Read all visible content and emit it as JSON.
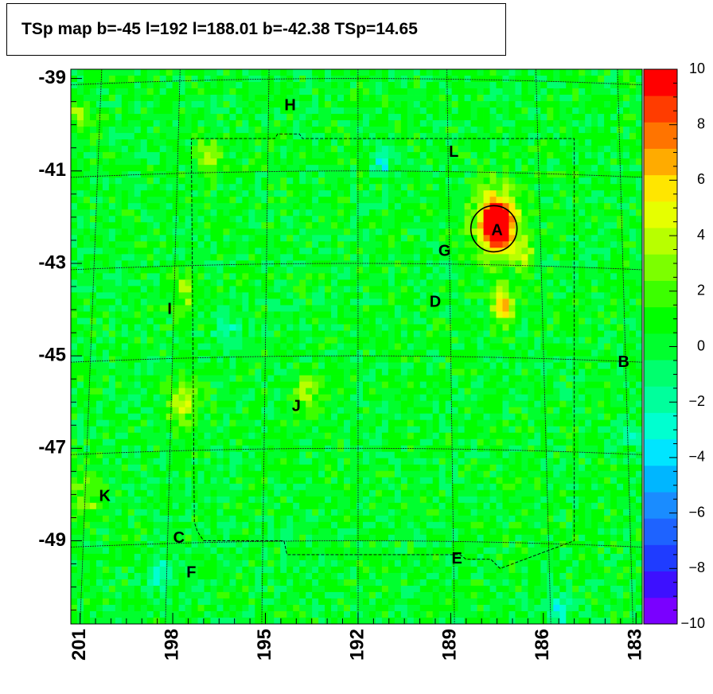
{
  "title": "TSp map b=-45 l=192 l=188.01 b=-42.38 TSp=14.65",
  "chart_data": {
    "type": "heatmap",
    "title": "TSp map b=-45 l=192 l=188.01 b=-42.38 TSp=14.65",
    "x_ticks": [
      "201",
      "198",
      "195",
      "192",
      "189",
      "186",
      "183"
    ],
    "x_tick_values": [
      201,
      198,
      195,
      192,
      189,
      186,
      183
    ],
    "xlim": [
      201.3,
      182.8
    ],
    "y_ticks": [
      "-39",
      "-41",
      "-43",
      "-45",
      "-47",
      "-49"
    ],
    "y_tick_values": [
      -39,
      -41,
      -43,
      -45,
      -47,
      -49
    ],
    "ylim": [
      -50.8,
      -38.8
    ],
    "colorbar": {
      "ticks": [
        "10",
        "8",
        "6",
        "4",
        "2",
        "0",
        "−2",
        "−4",
        "−6",
        "−8",
        "−10"
      ],
      "tick_values": [
        10,
        8,
        6,
        4,
        2,
        0,
        -2,
        -4,
        -6,
        -8,
        -10
      ],
      "range": [
        -10,
        10
      ],
      "colors": [
        "#7a00ff",
        "#3d10ff",
        "#1f3cff",
        "#1e63ff",
        "#1a8cff",
        "#00b6ff",
        "#00e5ff",
        "#00ffd0",
        "#00ff9c",
        "#00ff6e",
        "#00ff2e",
        "#00ff00",
        "#3cff00",
        "#7cff00",
        "#b8ff00",
        "#e6ff00",
        "#ffe600",
        "#ffab00",
        "#ff7400",
        "#ff3c00",
        "#ff0000"
      ]
    },
    "background_value": 0.3,
    "hotspots": [
      {
        "l": 187.5,
        "b": -42.2,
        "value": 10,
        "spread": 0.28
      },
      {
        "l": 187.5,
        "b": -42.1,
        "value": 8,
        "spread": 0.5
      },
      {
        "l": 187.3,
        "b": -43.9,
        "value": 7,
        "spread": 0.25
      },
      {
        "l": 197.7,
        "b": -46.0,
        "value": 4,
        "spread": 0.35
      },
      {
        "l": 196.8,
        "b": -40.7,
        "value": 3,
        "spread": 0.3
      },
      {
        "l": 197.6,
        "b": -43.6,
        "value": 3,
        "spread": 0.3
      },
      {
        "l": 193.7,
        "b": -45.8,
        "value": 3,
        "spread": 0.3
      },
      {
        "l": 200.8,
        "b": -48.0,
        "value": 2.5,
        "spread": 0.4
      },
      {
        "l": 201.1,
        "b": -39.8,
        "value": 2.5,
        "spread": 0.3
      },
      {
        "l": 186.6,
        "b": -42.9,
        "value": 3,
        "spread": 0.25
      },
      {
        "l": 191.2,
        "b": -40.8,
        "value": -4,
        "spread": 0.2
      },
      {
        "l": 185.5,
        "b": -50.5,
        "value": -3,
        "spread": 0.25
      },
      {
        "l": 183.2,
        "b": -46.7,
        "value": -2,
        "spread": 0.25
      },
      {
        "l": 198.4,
        "b": -49.7,
        "value": -3,
        "spread": 0.25
      },
      {
        "l": 196.2,
        "b": -44.5,
        "value": -2,
        "spread": 0.3
      }
    ],
    "labels": [
      {
        "text": "H",
        "l": 194.2,
        "b": -39.6
      },
      {
        "text": "L",
        "l": 188.9,
        "b": -40.6
      },
      {
        "text": "A",
        "l": 187.5,
        "b": -42.3
      },
      {
        "text": "G",
        "l": 189.2,
        "b": -42.75
      },
      {
        "text": "I",
        "l": 198.1,
        "b": -44.0
      },
      {
        "text": "D",
        "l": 189.5,
        "b": -43.85
      },
      {
        "text": "B",
        "l": 183.4,
        "b": -45.15
      },
      {
        "text": "J",
        "l": 194.0,
        "b": -46.1
      },
      {
        "text": "K",
        "l": 200.2,
        "b": -48.05
      },
      {
        "text": "C",
        "l": 197.8,
        "b": -48.95
      },
      {
        "text": "E",
        "l": 188.8,
        "b": -49.4
      },
      {
        "text": "F",
        "l": 197.4,
        "b": -49.7
      }
    ],
    "circle": {
      "l": 187.6,
      "b": -42.25
    },
    "lat_lines": [
      -39,
      -41,
      -43,
      -45,
      -47,
      -49
    ],
    "lon_lines": [
      198,
      195,
      192,
      189,
      186
    ],
    "grid": true
  }
}
